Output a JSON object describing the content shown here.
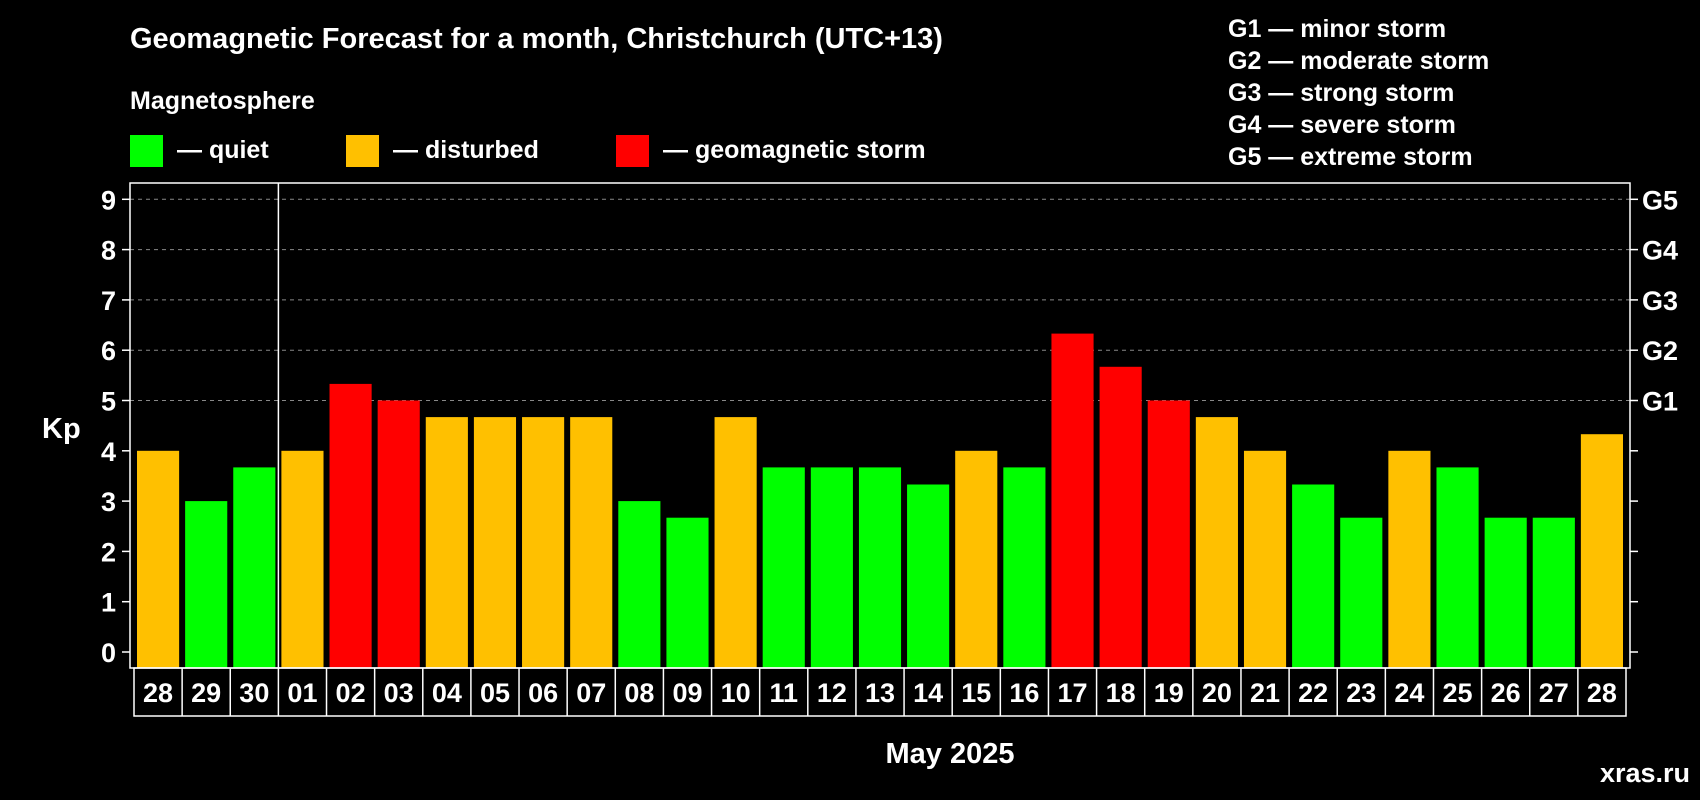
{
  "chart_data": {
    "type": "bar",
    "title": "Geomagnetic Forecast for a month, Christchurch (UTC+13)",
    "ylabel": "Kp",
    "xlabel": "May 2025",
    "ylim": [
      0,
      9
    ],
    "yticks": [
      "0",
      "1",
      "2",
      "3",
      "4",
      "5",
      "6",
      "7",
      "8",
      "9"
    ],
    "grid": true,
    "categories": [
      "28",
      "29",
      "30",
      "01",
      "02",
      "03",
      "04",
      "05",
      "06",
      "07",
      "08",
      "09",
      "10",
      "11",
      "12",
      "13",
      "14",
      "15",
      "16",
      "17",
      "18",
      "19",
      "20",
      "21",
      "22",
      "23",
      "24",
      "25",
      "26",
      "27",
      "28"
    ],
    "values": [
      4,
      3,
      3.67,
      4,
      5.33,
      5,
      4.67,
      4.67,
      4.67,
      4.67,
      3,
      2.67,
      4.67,
      3.67,
      3.67,
      3.67,
      3.33,
      4,
      3.67,
      6.33,
      5.67,
      5,
      4.67,
      4,
      3.33,
      2.67,
      4,
      3.67,
      2.67,
      2.67,
      4.33
    ],
    "status": [
      "disturbed",
      "quiet",
      "quiet",
      "disturbed",
      "storm",
      "storm",
      "disturbed",
      "disturbed",
      "disturbed",
      "disturbed",
      "quiet",
      "quiet",
      "disturbed",
      "quiet",
      "quiet",
      "quiet",
      "quiet",
      "disturbed",
      "quiet",
      "storm",
      "storm",
      "storm",
      "disturbed",
      "disturbed",
      "quiet",
      "quiet",
      "disturbed",
      "quiet",
      "quiet",
      "quiet",
      "disturbed"
    ],
    "month_divider_after_index": 2,
    "right_axis": [
      {
        "label": "G1",
        "kp": 5
      },
      {
        "label": "G2",
        "kp": 6
      },
      {
        "label": "G3",
        "kp": 7
      },
      {
        "label": "G4",
        "kp": 8
      },
      {
        "label": "G5",
        "kp": 9
      }
    ],
    "legend_title": "Magnetosphere",
    "legend": [
      {
        "key": "quiet",
        "label": "— quiet",
        "color": "#00ff00"
      },
      {
        "key": "disturbed",
        "label": "— disturbed",
        "color": "#ffc000"
      },
      {
        "key": "storm",
        "label": "— geomagnetic storm",
        "color": "#ff0000"
      }
    ],
    "g_scale": [
      "G1 — minor storm",
      "G2 — moderate storm",
      "G3 — strong storm",
      "G4 — severe storm",
      "G5 — extreme storm"
    ],
    "watermark": "xras.ru"
  },
  "colors": {
    "background": "#000000",
    "foreground": "#ffffff",
    "grid": "#888888",
    "watermark": "#555555"
  }
}
